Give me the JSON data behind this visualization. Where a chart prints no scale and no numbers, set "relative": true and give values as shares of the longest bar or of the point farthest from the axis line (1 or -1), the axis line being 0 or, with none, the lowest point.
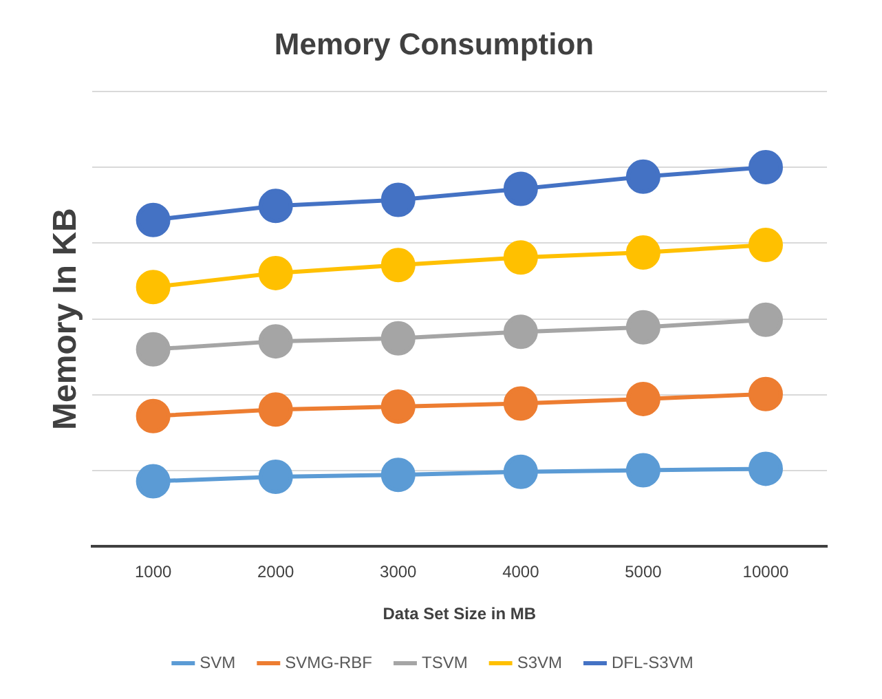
{
  "chart_data": {
    "type": "line",
    "title": "Memory Consumption",
    "xlabel": "Data Set Size in MB",
    "ylabel": "Memory In KB",
    "relative": true,
    "grid": "y",
    "legend": "bottom",
    "marker": "circle",
    "categories": [
      "1000",
      "2000",
      "3000",
      "4000",
      "5000",
      "10000"
    ],
    "series": [
      {
        "name": "SVM",
        "color": "#5b9bd5",
        "values": [
          0.172,
          0.184,
          0.189,
          0.197,
          0.201,
          0.205
        ]
      },
      {
        "name": "SVMG-RBF",
        "color": "#ed7d31",
        "values": [
          0.344,
          0.361,
          0.369,
          0.377,
          0.389,
          0.402
        ]
      },
      {
        "name": "TSVM",
        "color": "#a5a5a5",
        "values": [
          0.52,
          0.541,
          0.549,
          0.566,
          0.578,
          0.598
        ]
      },
      {
        "name": "S3VM",
        "color": "#ffc000",
        "values": [
          0.684,
          0.721,
          0.742,
          0.762,
          0.775,
          0.795
        ]
      },
      {
        "name": "DFL-S3VM",
        "color": "#4472c4",
        "values": [
          0.861,
          0.898,
          0.914,
          0.943,
          0.975,
          1
        ]
      }
    ]
  }
}
